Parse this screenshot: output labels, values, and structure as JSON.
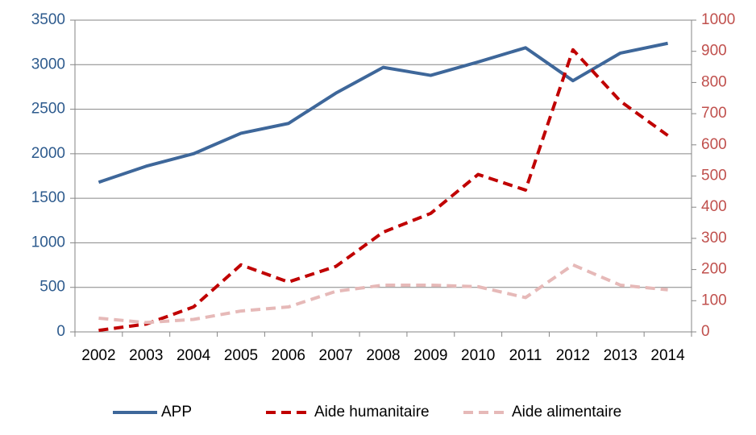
{
  "chart_data": {
    "type": "line",
    "categories": [
      "2002",
      "2003",
      "2004",
      "2005",
      "2006",
      "2007",
      "2008",
      "2009",
      "2010",
      "2011",
      "2012",
      "2013",
      "2014"
    ],
    "series": [
      {
        "name": "APP",
        "color": "#3e679a",
        "dash": "solid",
        "axis": "y",
        "values": [
          1680,
          1860,
          2000,
          2230,
          2340,
          2680,
          2970,
          2880,
          3030,
          3190,
          2820,
          3130,
          3240
        ]
      },
      {
        "name": "Aide humanitaire",
        "color": "#c00000",
        "dash": "dashed",
        "axis": "y2",
        "values": [
          5,
          25,
          80,
          215,
          160,
          210,
          320,
          380,
          505,
          455,
          905,
          740,
          630
        ]
      },
      {
        "name": "Aide alimentaire",
        "color": "#e6b9b8",
        "dash": "dashed",
        "axis": "y2",
        "values": [
          44,
          30,
          40,
          67,
          80,
          130,
          150,
          150,
          145,
          110,
          215,
          150,
          135
        ]
      }
    ],
    "ylim": [
      0,
      3500
    ],
    "yticks": [
      0,
      500,
      1000,
      1500,
      2000,
      2500,
      3000,
      3500
    ],
    "ytick_color": "#2e5b8e",
    "y2lim": [
      0,
      1000
    ],
    "y2ticks": [
      0,
      100,
      200,
      300,
      400,
      500,
      600,
      700,
      800,
      900,
      1000
    ],
    "y2tick_color": "#c0504d",
    "grid": true,
    "legend": "bottom"
  }
}
